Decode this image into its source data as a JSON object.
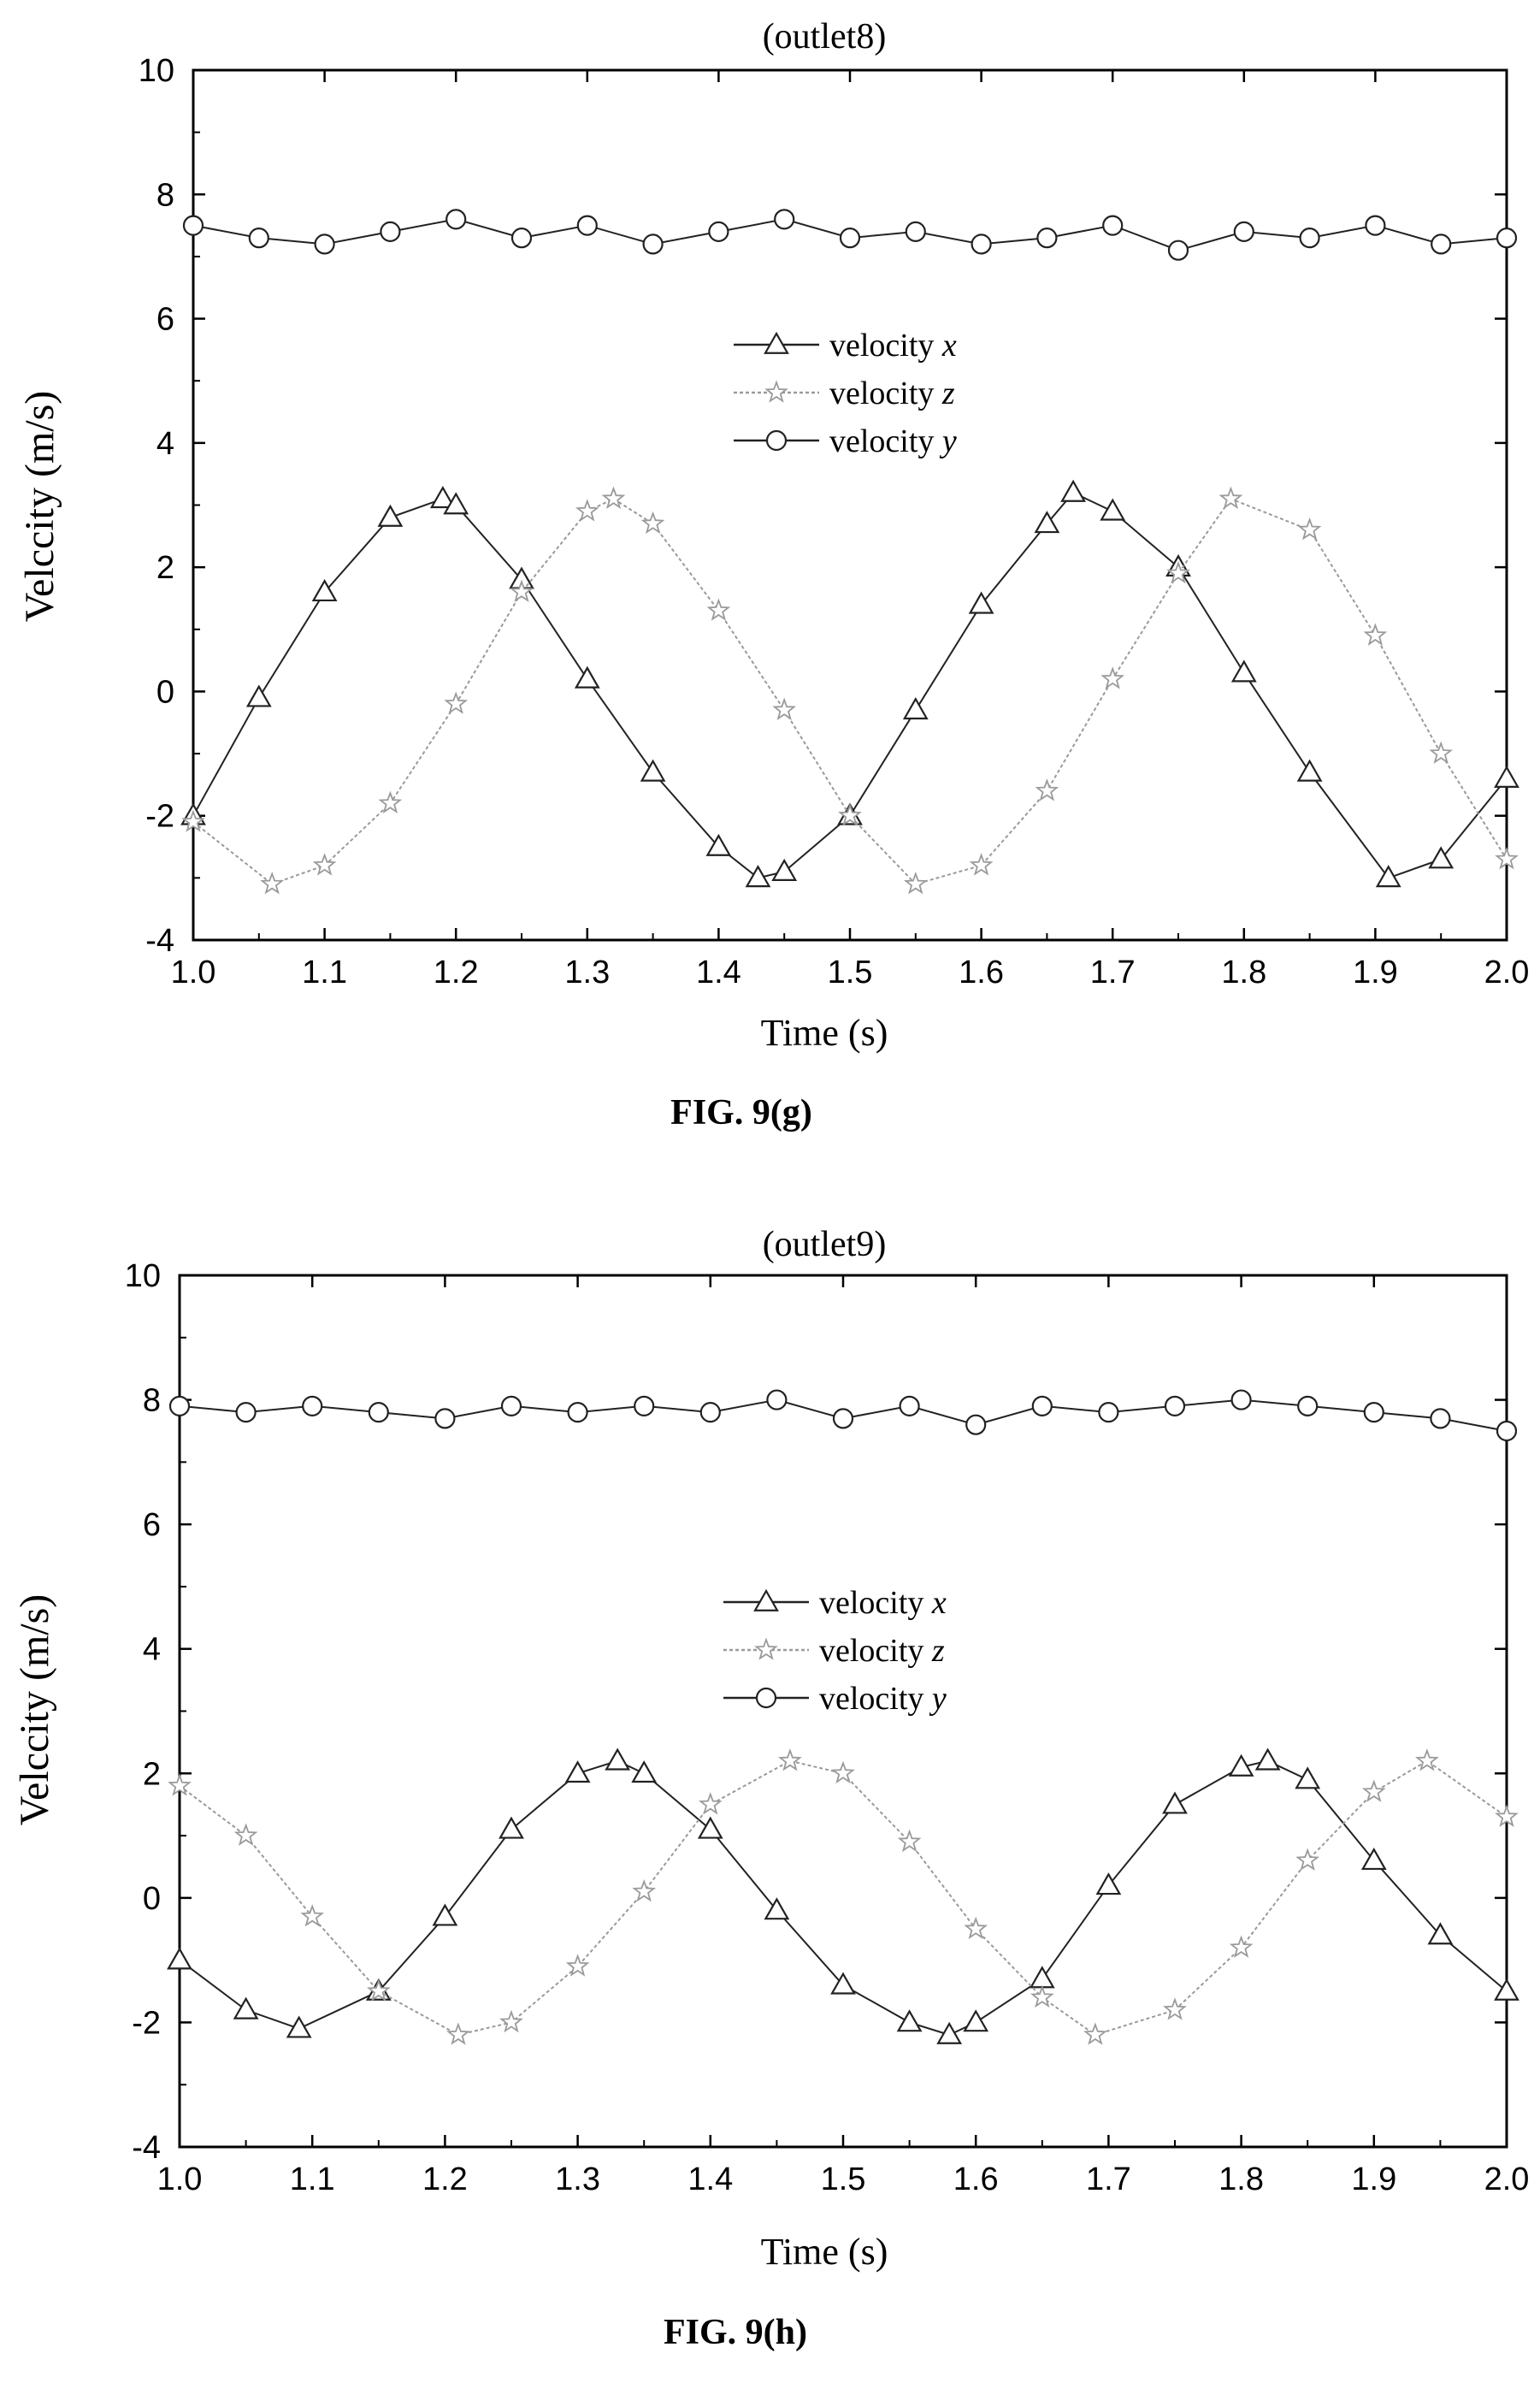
{
  "chart_data": [
    {
      "type": "scatter",
      "panel_title": "(outlet8)",
      "figure_label": "FIG. 9(g)",
      "xlabel": "Time (s)",
      "ylabel": "Velccity (m/s)",
      "xlim": [
        1.0,
        2.0
      ],
      "ylim": [
        -4,
        10
      ],
      "xticks": [
        "1.0",
        "1.1",
        "1.2",
        "1.3",
        "1.4",
        "1.5",
        "1.6",
        "1.7",
        "1.8",
        "1.9",
        "2.0"
      ],
      "yticks": [
        "-4",
        "-2",
        "0",
        "2",
        "4",
        "6",
        "8",
        "10"
      ],
      "grid": false,
      "legend_position": "center",
      "series": [
        {
          "name": "velocity x",
          "marker": "triangle",
          "color": "#222222",
          "x": [
            1.0,
            1.05,
            1.1,
            1.15,
            1.19,
            1.2,
            1.25,
            1.3,
            1.35,
            1.4,
            1.43,
            1.45,
            1.5,
            1.55,
            1.6,
            1.65,
            1.67,
            1.7,
            1.75,
            1.8,
            1.85,
            1.91,
            1.95,
            2.0
          ],
          "y": [
            -2.0,
            -0.1,
            1.6,
            2.8,
            3.1,
            3.0,
            1.8,
            0.2,
            -1.3,
            -2.5,
            -3.0,
            -2.9,
            -2.0,
            -0.3,
            1.4,
            2.7,
            3.2,
            2.9,
            2.0,
            0.3,
            -1.3,
            -3.0,
            -2.7,
            -1.4
          ]
        },
        {
          "name": "velocity z",
          "marker": "star",
          "color": "#9a9a9a",
          "x": [
            1.0,
            1.06,
            1.1,
            1.15,
            1.2,
            1.25,
            1.3,
            1.32,
            1.35,
            1.4,
            1.45,
            1.5,
            1.55,
            1.6,
            1.65,
            1.7,
            1.75,
            1.79,
            1.85,
            1.9,
            1.95,
            2.0
          ],
          "y": [
            -2.1,
            -3.1,
            -2.8,
            -1.8,
            -0.2,
            1.6,
            2.9,
            3.1,
            2.7,
            1.3,
            -0.3,
            -2.0,
            -3.1,
            -2.8,
            -1.6,
            0.2,
            1.9,
            3.1,
            2.6,
            0.9,
            -1.0,
            -2.7
          ]
        },
        {
          "name": "velocity y",
          "marker": "circle",
          "color": "#222222",
          "x": [
            1.0,
            1.05,
            1.1,
            1.15,
            1.2,
            1.25,
            1.3,
            1.35,
            1.4,
            1.45,
            1.5,
            1.55,
            1.6,
            1.65,
            1.7,
            1.75,
            1.8,
            1.85,
            1.9,
            1.95,
            2.0
          ],
          "y": [
            7.5,
            7.3,
            7.2,
            7.4,
            7.6,
            7.3,
            7.5,
            7.2,
            7.4,
            7.6,
            7.3,
            7.4,
            7.2,
            7.3,
            7.5,
            7.1,
            7.4,
            7.3,
            7.5,
            7.2,
            7.3
          ]
        }
      ]
    },
    {
      "type": "scatter",
      "panel_title": "(outlet9)",
      "figure_label": "FIG. 9(h)",
      "xlabel": "Time (s)",
      "ylabel": "Velccity (m/s)",
      "xlim": [
        1.0,
        2.0
      ],
      "ylim": [
        -4,
        10
      ],
      "xticks": [
        "1.0",
        "1.1",
        "1.2",
        "1.3",
        "1.4",
        "1.5",
        "1.6",
        "1.7",
        "1.8",
        "1.9",
        "2.0"
      ],
      "yticks": [
        "-4",
        "-2",
        "0",
        "2",
        "4",
        "6",
        "8",
        "10"
      ],
      "grid": false,
      "legend_position": "center",
      "series": [
        {
          "name": "velocity x",
          "marker": "triangle",
          "color": "#222222",
          "x": [
            1.0,
            1.05,
            1.09,
            1.15,
            1.2,
            1.25,
            1.3,
            1.33,
            1.35,
            1.4,
            1.45,
            1.5,
            1.55,
            1.58,
            1.6,
            1.65,
            1.7,
            1.75,
            1.8,
            1.82,
            1.85,
            1.9,
            1.95,
            2.0
          ],
          "y": [
            -1.0,
            -1.8,
            -2.1,
            -1.5,
            -0.3,
            1.1,
            2.0,
            2.2,
            2.0,
            1.1,
            -0.2,
            -1.4,
            -2.0,
            -2.2,
            -2.0,
            -1.3,
            0.2,
            1.5,
            2.1,
            2.2,
            1.9,
            0.6,
            -0.6,
            -1.5
          ]
        },
        {
          "name": "velocity z",
          "marker": "star",
          "color": "#9a9a9a",
          "x": [
            1.0,
            1.05,
            1.1,
            1.15,
            1.21,
            1.25,
            1.3,
            1.35,
            1.4,
            1.46,
            1.5,
            1.55,
            1.6,
            1.65,
            1.69,
            1.75,
            1.8,
            1.85,
            1.9,
            1.94,
            2.0
          ],
          "y": [
            1.8,
            1.0,
            -0.3,
            -1.5,
            -2.2,
            -2.0,
            -1.1,
            0.1,
            1.5,
            2.2,
            2.0,
            0.9,
            -0.5,
            -1.6,
            -2.2,
            -1.8,
            -0.8,
            0.6,
            1.7,
            2.2,
            1.3
          ]
        },
        {
          "name": "velocity y",
          "marker": "circle",
          "color": "#222222",
          "x": [
            1.0,
            1.05,
            1.1,
            1.15,
            1.2,
            1.25,
            1.3,
            1.35,
            1.4,
            1.45,
            1.5,
            1.55,
            1.6,
            1.65,
            1.7,
            1.75,
            1.8,
            1.85,
            1.9,
            1.95,
            2.0
          ],
          "y": [
            7.9,
            7.8,
            7.9,
            7.8,
            7.7,
            7.9,
            7.8,
            7.9,
            7.8,
            8.0,
            7.7,
            7.9,
            7.6,
            7.9,
            7.8,
            7.9,
            8.0,
            7.9,
            7.8,
            7.7,
            7.5
          ]
        }
      ]
    }
  ]
}
